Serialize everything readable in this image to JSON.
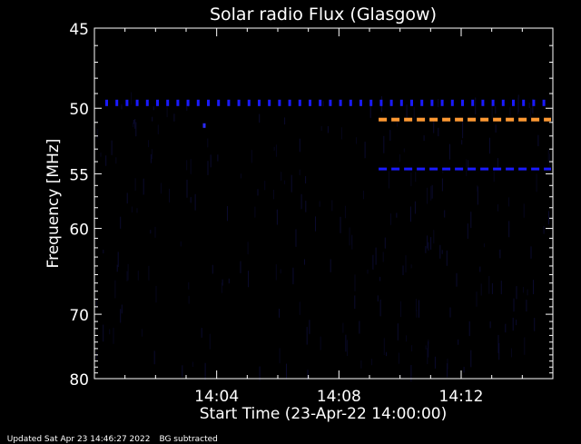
{
  "chart_data": {
    "type": "heatmap",
    "title": "Solar radio Flux (Glasgow)",
    "xlabel": "Start Time (23-Apr-22 14:00:00)",
    "ylabel": "Frequency [MHz]",
    "x_tick_labels": [
      "14:04",
      "14:08",
      "14:12"
    ],
    "x_tick_minutes": [
      4,
      8,
      12
    ],
    "x_range_minutes": [
      0,
      15
    ],
    "y_tick_labels": [
      "45",
      "50",
      "55",
      "60",
      "70",
      "80"
    ],
    "y_tick_values": [
      45,
      50,
      55,
      60,
      70,
      80
    ],
    "ylim": [
      80,
      45
    ],
    "y_scale": "reciprocal",
    "grid": false,
    "background_color": "#000000",
    "axis_color": "#ffffff",
    "features": [
      {
        "name": "",
        "kind": "dashed-line",
        "freq": 49.6,
        "t_start": 0.0,
        "t_end": 15.0,
        "color": "#1a1aff"
      },
      {
        "name": "",
        "kind": "dashed-line",
        "freq": 50.8,
        "t_start": 9.3,
        "t_end": 15.0,
        "color": "#ff9933"
      },
      {
        "name": "",
        "kind": "dashed-line",
        "freq": 54.6,
        "t_start": 9.3,
        "t_end": 15.0,
        "color": "#1a1aff"
      },
      {
        "name": "",
        "kind": "dot",
        "freq": 51.2,
        "t_start": 3.55,
        "t_end": 3.6,
        "color": "#2a2aff"
      }
    ]
  },
  "footer": {
    "updated": "Updated Sat Apr 23 14:46:27 2022",
    "note": "BG subtracted"
  }
}
